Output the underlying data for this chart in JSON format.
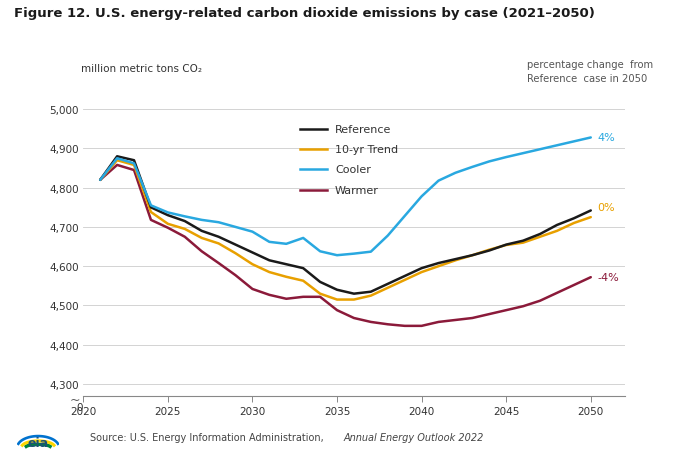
{
  "title": "Figure 12. U.S. energy-related carbon dioxide emissions by case (2021–2050)",
  "ylabel": "million metric tons CO₂",
  "source_normal": "Source: U.S. Energy Information Administration, ",
  "source_italic": "Annual Energy Outlook 2022",
  "annotation_text": "percentage change  from\nReference  case in 2050",
  "background_color": "#ffffff",
  "series": {
    "Reference": {
      "color": "#1a1a1a",
      "years": [
        2021,
        2022,
        2023,
        2024,
        2025,
        2026,
        2027,
        2028,
        2029,
        2030,
        2031,
        2032,
        2033,
        2034,
        2035,
        2036,
        2037,
        2038,
        2039,
        2040,
        2041,
        2042,
        2043,
        2044,
        2045,
        2046,
        2047,
        2048,
        2049,
        2050
      ],
      "values": [
        4820,
        4880,
        4870,
        4750,
        4730,
        4715,
        4690,
        4675,
        4655,
        4635,
        4615,
        4605,
        4595,
        4560,
        4540,
        4530,
        4535,
        4555,
        4575,
        4595,
        4608,
        4618,
        4628,
        4640,
        4655,
        4665,
        4682,
        4705,
        4722,
        4742
      ],
      "label_pct": "0%",
      "label_color": "#E8A000"
    },
    "10yr_Trend": {
      "color": "#E8A000",
      "years": [
        2021,
        2022,
        2023,
        2024,
        2025,
        2026,
        2027,
        2028,
        2029,
        2030,
        2031,
        2032,
        2033,
        2034,
        2035,
        2036,
        2037,
        2038,
        2039,
        2040,
        2041,
        2042,
        2043,
        2044,
        2045,
        2046,
        2047,
        2048,
        2049,
        2050
      ],
      "values": [
        4820,
        4870,
        4858,
        4738,
        4708,
        4695,
        4672,
        4658,
        4633,
        4605,
        4585,
        4573,
        4563,
        4530,
        4515,
        4515,
        4525,
        4545,
        4565,
        4585,
        4600,
        4615,
        4628,
        4642,
        4654,
        4660,
        4675,
        4690,
        4710,
        4725
      ],
      "label": "10-yr Trend",
      "label_pct": "",
      "label_color": "#E8A000"
    },
    "Cooler": {
      "color": "#29A8E0",
      "years": [
        2021,
        2022,
        2023,
        2024,
        2025,
        2026,
        2027,
        2028,
        2029,
        2030,
        2031,
        2032,
        2033,
        2034,
        2035,
        2036,
        2037,
        2038,
        2039,
        2040,
        2041,
        2042,
        2043,
        2044,
        2045,
        2046,
        2047,
        2048,
        2049,
        2050
      ],
      "values": [
        4820,
        4875,
        4862,
        4755,
        4737,
        4727,
        4718,
        4712,
        4700,
        4688,
        4662,
        4657,
        4672,
        4638,
        4628,
        4632,
        4637,
        4678,
        4728,
        4778,
        4818,
        4838,
        4853,
        4867,
        4878,
        4888,
        4898,
        4908,
        4918,
        4928
      ],
      "label_pct": "4%",
      "label_color": "#29A8E0"
    },
    "Warmer": {
      "color": "#8B1A3A",
      "years": [
        2021,
        2022,
        2023,
        2024,
        2025,
        2026,
        2027,
        2028,
        2029,
        2030,
        2031,
        2032,
        2033,
        2034,
        2035,
        2036,
        2037,
        2038,
        2039,
        2040,
        2041,
        2042,
        2043,
        2044,
        2045,
        2046,
        2047,
        2048,
        2049,
        2050
      ],
      "values": [
        4820,
        4858,
        4845,
        4718,
        4698,
        4675,
        4638,
        4608,
        4577,
        4542,
        4527,
        4517,
        4522,
        4522,
        4488,
        4468,
        4458,
        4452,
        4448,
        4448,
        4458,
        4463,
        4468,
        4478,
        4488,
        4498,
        4512,
        4532,
        4552,
        4572
      ],
      "label_pct": "-4%",
      "label_color": "#8B1A3A"
    }
  },
  "yticks_main": [
    4300,
    4400,
    4500,
    4600,
    4700,
    4800,
    4900,
    5000
  ],
  "ytick_labels_main": [
    "4,300",
    "4,400",
    "4,500",
    "4,600",
    "4,700",
    "4,800",
    "4,900",
    "5,000"
  ],
  "xticks": [
    2020,
    2025,
    2030,
    2035,
    2040,
    2045,
    2050
  ],
  "ylim_plot_bottom": 4270,
  "ylim_plot_top": 5060,
  "xlim_left": 2020,
  "xlim_right": 2052,
  "legend_items": [
    {
      "label": "Reference",
      "color": "#1a1a1a"
    },
    {
      "label": "10-yr Trend",
      "color": "#E8A000"
    },
    {
      "label": "Cooler",
      "color": "#29A8E0"
    },
    {
      "label": "Warmer",
      "color": "#8B1A3A"
    }
  ]
}
